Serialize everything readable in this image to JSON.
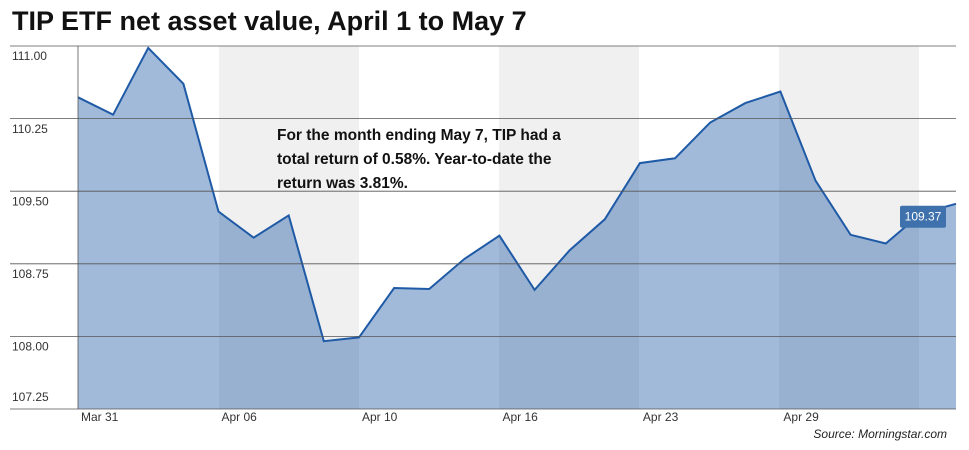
{
  "chart_data": {
    "type": "area",
    "title": "TIP ETF net asset value, April 1 to May 7",
    "annotation": "For the month ending May 7, TIP had a total return of 0.58%. Year-to-date the return was 3.81%.",
    "source": "Source: Morningstar.com",
    "categories": [
      "Mar 31",
      null,
      null,
      null,
      "Apr 06",
      null,
      null,
      null,
      "Apr 10",
      null,
      null,
      null,
      "Apr 16",
      null,
      null,
      null,
      "Apr 23",
      null,
      null,
      null,
      "Apr 29",
      null,
      null,
      null,
      null,
      null
    ],
    "values": [
      110.47,
      110.29,
      110.98,
      110.61,
      109.29,
      109.02,
      109.25,
      107.95,
      107.99,
      108.5,
      108.49,
      108.8,
      109.04,
      108.48,
      108.89,
      109.21,
      109.79,
      109.84,
      110.21,
      110.41,
      110.53,
      109.61,
      109.05,
      108.96,
      109.27,
      109.37
    ],
    "color": "#1f5aa6",
    "ylim": [
      107.25,
      111.0
    ],
    "yticks": [
      {
        "value": 107.25,
        "label": "107.25"
      },
      {
        "value": 108.0,
        "label": "108.00"
      },
      {
        "value": 108.75,
        "label": "108.75"
      },
      {
        "value": 109.5,
        "label": "109.50"
      },
      {
        "value": 110.25,
        "label": "110.25"
      },
      {
        "value": 111.0,
        "label": "111.00"
      }
    ],
    "grid": true
  }
}
